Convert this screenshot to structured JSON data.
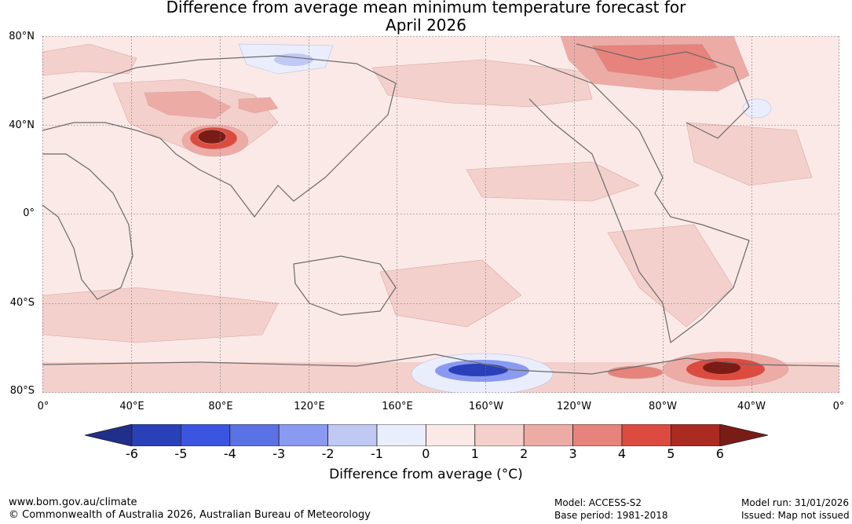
{
  "title_line1": "Difference from average mean minimum temperature forecast for",
  "title_line2": "April 2026",
  "lat_labels": [
    "80°N",
    "40°N",
    "0°",
    "40°S",
    "80°S"
  ],
  "lon_labels": [
    "0°",
    "40°E",
    "80°E",
    "120°E",
    "160°E",
    "160°W",
    "120°W",
    "80°W",
    "40°W",
    "0°"
  ],
  "colorbar": {
    "label": "Difference from average (°C)",
    "ticks": [
      "-6",
      "-5",
      "-4",
      "-3",
      "-2",
      "-1",
      "0",
      "1",
      "2",
      "3",
      "4",
      "5",
      "6"
    ],
    "colors": [
      "#1f2f8a",
      "#2a40b8",
      "#3b55e0",
      "#5b72e4",
      "#8a9af0",
      "#c0c8f4",
      "#eaeefc",
      "#fbe9e7",
      "#f4d0cc",
      "#edaba6",
      "#e6837c",
      "#dc4b40",
      "#ab2a22",
      "#7a1c16"
    ]
  },
  "footer": {
    "website": "www.bom.gov.au/climate",
    "copyright": "© Commonwealth of Australia 2026, Australian Bureau of Meteorology",
    "model": "Model: ACCESS-S2",
    "base_period": "Base period: 1981-2018",
    "model_run": "Model run: 31/01/2026",
    "issued": "Issued: Map not issued"
  }
}
